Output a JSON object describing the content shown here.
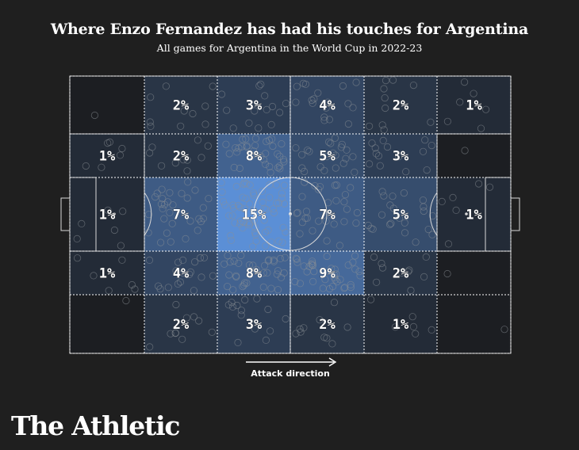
{
  "chart_data": {
    "type": "heatmap",
    "title": "Where Enzo Fernandez has had his touches for Argentina",
    "subtitle": "All games for Argentina in the World Cup in 2022-23",
    "columns": 6,
    "rows": 5,
    "cells": [
      [
        "",
        "2%",
        "3%",
        "4%",
        "2%",
        "1%"
      ],
      [
        "1%",
        "2%",
        "8%",
        "5%",
        "3%",
        ""
      ],
      [
        "1%",
        "7%",
        "15%",
        "7%",
        "5%",
        "1%"
      ],
      [
        "1%",
        "4%",
        "8%",
        "9%",
        "2%",
        ""
      ],
      [
        "",
        "2%",
        "3%",
        "2%",
        "1%",
        ""
      ]
    ],
    "values": [
      [
        0,
        2,
        3,
        4,
        2,
        1
      ],
      [
        1,
        2,
        8,
        5,
        3,
        0
      ],
      [
        1,
        7,
        15,
        7,
        5,
        1
      ],
      [
        1,
        4,
        8,
        9,
        2,
        0
      ],
      [
        0,
        2,
        3,
        2,
        1,
        0
      ]
    ],
    "color_low": "#1c1e22",
    "color_high": "#5b8fd6",
    "attack_direction_label": "Attack direction"
  },
  "brand": "The Athletic"
}
